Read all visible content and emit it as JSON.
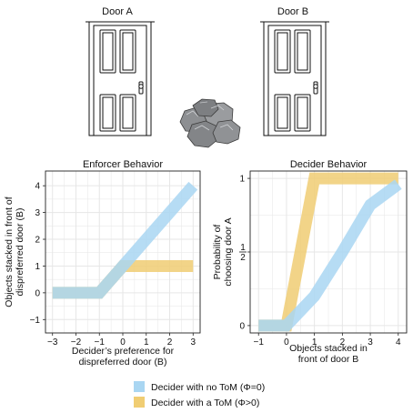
{
  "doors": {
    "left_label": "Door A",
    "right_label": "Door B",
    "rocks_icon": "rock-pile-icon"
  },
  "colors": {
    "no_tom": "#A9D6F2",
    "tom": "#F0CD73",
    "overlap": "#B3AC7D",
    "grid": "#E6E6E6",
    "frame": "#222222"
  },
  "chart_data": [
    {
      "type": "line",
      "title": "Enforcer Behavior",
      "xlabel_lines": [
        "Decider’s preference for",
        "dispreferred door (B)"
      ],
      "ylabel_lines": [
        "Objects stacked in front of",
        "dispreferred door (B)"
      ],
      "xlim": [
        -3.3,
        3.3
      ],
      "ylim": [
        -1.5,
        4.55
      ],
      "xticks": [
        -3,
        -2,
        -1,
        0,
        1,
        2,
        3
      ],
      "xtick_labels": [
        "−3",
        "−2",
        "−1",
        "0",
        "1",
        "2",
        "3"
      ],
      "yticks": [
        -1,
        0,
        1,
        2,
        3,
        4
      ],
      "ytick_labels": [
        "−1",
        "0",
        "1",
        "2",
        "3",
        "4"
      ],
      "grid": true,
      "series": [
        {
          "key": "no_tom",
          "x": [
            -3,
            -1,
            0,
            1,
            2,
            3
          ],
          "y": [
            0,
            0,
            1,
            2,
            3,
            4
          ]
        },
        {
          "key": "tom",
          "x": [
            -3,
            -1,
            0,
            1,
            2,
            3
          ],
          "y": [
            0,
            0,
            1,
            1,
            1,
            1
          ]
        }
      ]
    },
    {
      "type": "line",
      "title": "Decider Behavior",
      "xlabel_lines": [
        "Objects stacked in",
        "front of door B"
      ],
      "ylabel_lines": [
        "Probability of",
        "choosing door A"
      ],
      "xlim": [
        -1.3,
        4.3
      ],
      "ylim": [
        -0.05,
        1.05
      ],
      "xticks": [
        -1,
        0,
        1,
        2,
        3,
        4
      ],
      "xtick_labels": [
        "−1",
        "0",
        "1",
        "2",
        "3",
        "4"
      ],
      "yticks": [
        0,
        0.5,
        1
      ],
      "ytick_labels": [
        "0",
        "1/2",
        "1"
      ],
      "grid": true,
      "series": [
        {
          "key": "no_tom",
          "x": [
            -1,
            0,
            1,
            2,
            3,
            4
          ],
          "y": [
            0,
            0,
            0.2,
            0.5,
            0.82,
            0.96
          ]
        },
        {
          "key": "tom",
          "x": [
            -1,
            0,
            1,
            2,
            3,
            4
          ],
          "y": [
            0,
            0,
            1,
            1,
            1,
            1
          ]
        }
      ]
    }
  ],
  "legend": {
    "items": [
      {
        "key": "no_tom",
        "label": "Decider with no ToM (Φ=0)"
      },
      {
        "key": "tom",
        "label": "Decider with a ToM (Φ>0)"
      }
    ]
  }
}
